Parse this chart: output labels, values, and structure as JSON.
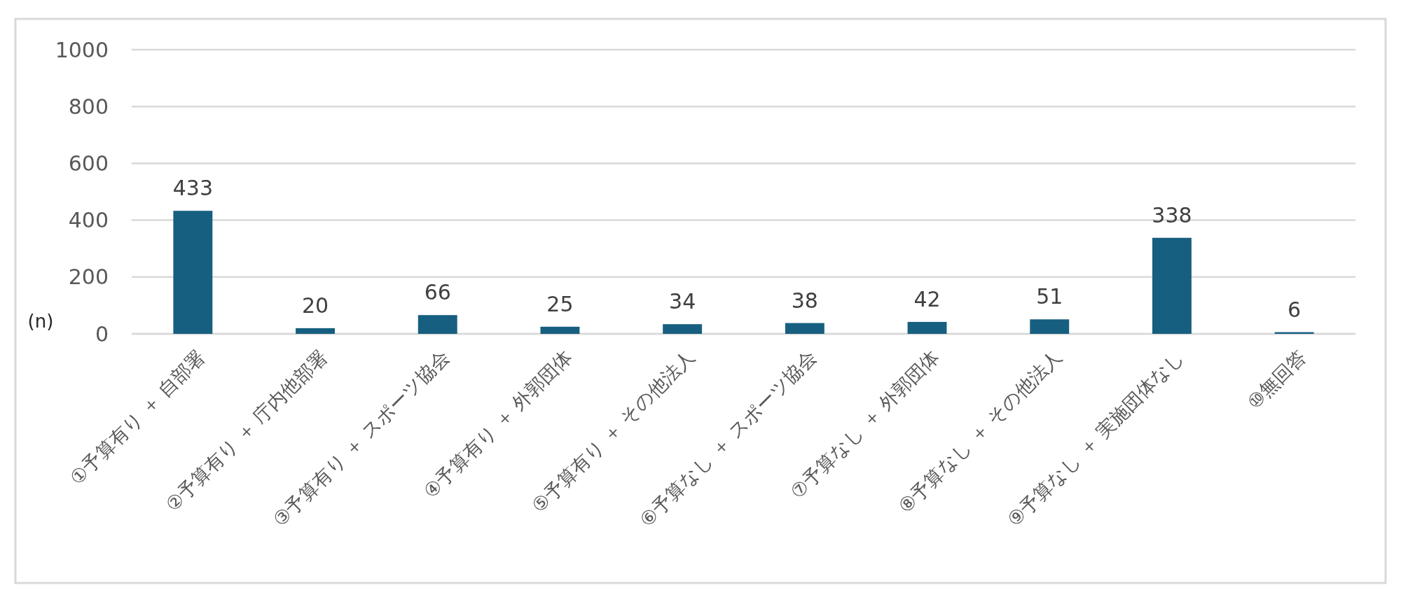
{
  "chart_data": {
    "type": "bar",
    "ylabel": "(n)",
    "categories": [
      "①予算有り ＋ 自部署",
      "②予算有り ＋ 庁内他部署",
      "③予算有り ＋ スポーツ協会",
      "④予算有り ＋ 外郭団体",
      "⑤予算有り ＋ その他法人",
      "⑥予算なし ＋ スポーツ協会",
      "⑦予算なし ＋ 外郭団体",
      "⑧予算なし ＋ その他法人",
      "⑨予算なし ＋ 実施団体なし",
      "⑩無回答"
    ],
    "values": [
      433,
      20,
      66,
      25,
      34,
      38,
      42,
      51,
      338,
      6
    ],
    "color": "#175f80",
    "ylim": [
      0,
      1000
    ],
    "yticks": [
      0,
      200,
      400,
      600,
      800,
      1000
    ],
    "grid": "y",
    "data_labels": true
  }
}
